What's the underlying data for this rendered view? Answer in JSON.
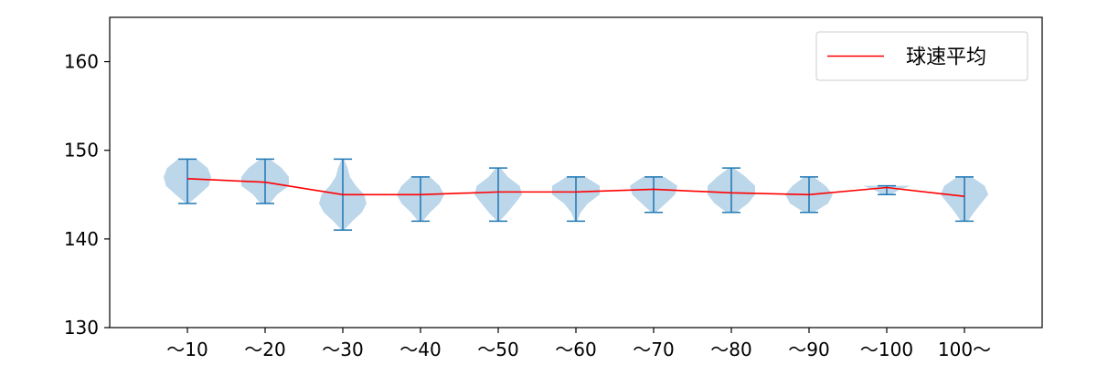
{
  "chart_data": {
    "type": "violin",
    "categories": [
      "～10",
      "～20",
      "～30",
      "～40",
      "～50",
      "～60",
      "～70",
      "～80",
      "～90",
      "～100",
      "100～"
    ],
    "ylim": [
      130,
      165
    ],
    "yticks": [
      130,
      140,
      150,
      160
    ],
    "grid": false,
    "legend_position": "top-right",
    "violins": [
      {
        "category": "～10",
        "min": 144,
        "max": 149,
        "profile": [
          [
            144,
            0.05
          ],
          [
            145,
            0.5
          ],
          [
            146,
            0.9
          ],
          [
            147,
            1.0
          ],
          [
            148,
            0.85
          ],
          [
            149,
            0.4
          ]
        ]
      },
      {
        "category": "～20",
        "min": 144,
        "max": 149,
        "profile": [
          [
            144,
            0.2
          ],
          [
            145,
            0.5
          ],
          [
            146,
            1.0
          ],
          [
            147,
            1.0
          ],
          [
            148,
            0.7
          ],
          [
            149,
            0.2
          ]
        ]
      },
      {
        "category": "～30",
        "min": 141,
        "max": 149,
        "profile": [
          [
            141,
            0.05
          ],
          [
            142,
            0.4
          ],
          [
            143,
            0.8
          ],
          [
            144,
            1.0
          ],
          [
            145,
            0.9
          ],
          [
            146,
            0.55
          ],
          [
            147,
            0.3
          ],
          [
            148,
            0.2
          ],
          [
            149,
            0.05
          ]
        ]
      },
      {
        "category": "～40",
        "min": 142,
        "max": 147,
        "profile": [
          [
            142,
            0.1
          ],
          [
            143,
            0.4
          ],
          [
            144,
            0.8
          ],
          [
            145,
            1.0
          ],
          [
            146,
            0.8
          ],
          [
            147,
            0.4
          ]
        ]
      },
      {
        "category": "～50",
        "min": 142,
        "max": 148,
        "profile": [
          [
            142,
            0.05
          ],
          [
            143,
            0.4
          ],
          [
            144,
            0.7
          ],
          [
            145,
            1.0
          ],
          [
            146,
            0.9
          ],
          [
            147,
            0.4
          ],
          [
            148,
            0.1
          ]
        ]
      },
      {
        "category": "～60",
        "min": 142,
        "max": 147,
        "profile": [
          [
            142,
            0.05
          ],
          [
            143,
            0.2
          ],
          [
            144,
            0.5
          ],
          [
            145,
            1.0
          ],
          [
            146,
            1.0
          ],
          [
            147,
            0.4
          ]
        ]
      },
      {
        "category": "～70",
        "min": 143,
        "max": 147,
        "profile": [
          [
            143,
            0.1
          ],
          [
            144,
            0.5
          ],
          [
            145,
            0.9
          ],
          [
            146,
            1.0
          ],
          [
            147,
            0.45
          ]
        ]
      },
      {
        "category": "～80",
        "min": 143,
        "max": 148,
        "profile": [
          [
            143,
            0.2
          ],
          [
            144,
            0.7
          ],
          [
            145,
            1.0
          ],
          [
            146,
            1.0
          ],
          [
            147,
            0.6
          ],
          [
            148,
            0.1
          ]
        ]
      },
      {
        "category": "～90",
        "min": 143,
        "max": 147,
        "profile": [
          [
            143,
            0.2
          ],
          [
            144,
            0.8
          ],
          [
            145,
            1.0
          ],
          [
            146,
            0.7
          ],
          [
            147,
            0.2
          ]
        ]
      },
      {
        "category": "～100",
        "min": 145,
        "max": 146,
        "profile": [
          [
            145,
            0.2
          ],
          [
            145.5,
            0.5
          ],
          [
            146,
            1.0
          ]
        ]
      },
      {
        "category": "100～",
        "min": 142,
        "max": 147,
        "profile": [
          [
            142,
            0.15
          ],
          [
            143,
            0.4
          ],
          [
            144,
            0.7
          ],
          [
            145,
            1.0
          ],
          [
            146,
            0.85
          ],
          [
            147,
            0.3
          ]
        ]
      }
    ],
    "series": [
      {
        "name": "球速平均",
        "values": [
          146.8,
          146.4,
          145.0,
          145.0,
          145.3,
          145.3,
          145.6,
          145.2,
          145.0,
          145.8,
          144.8
        ]
      }
    ],
    "colors": {
      "violin_fill": "#a6c8e3",
      "violin_line": "#1f77b4",
      "mean_line": "#ff0000",
      "axis": "#000000",
      "legend_border": "#cccccc"
    }
  }
}
